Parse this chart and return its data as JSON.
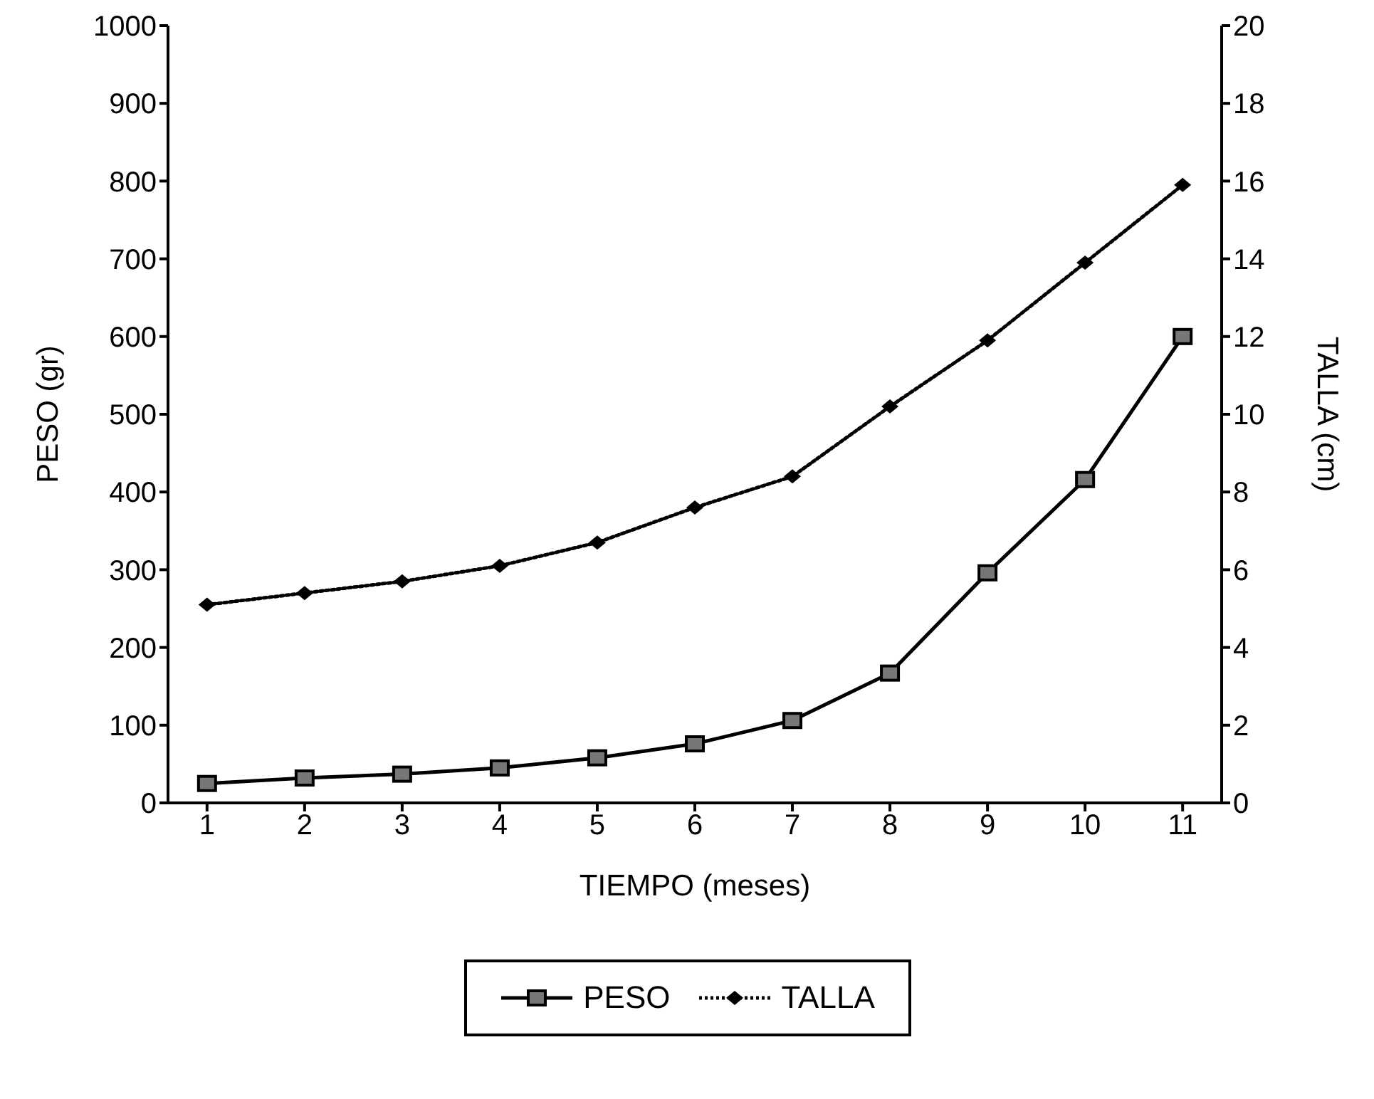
{
  "chart_data": {
    "type": "line",
    "xlabel": "TIEMPO (meses)",
    "ylabel": "PESO (gr)",
    "y2label": "TALLA (cm)",
    "x": [
      1,
      2,
      3,
      4,
      5,
      6,
      7,
      8,
      9,
      10,
      11
    ],
    "xlim": [
      0.6,
      11.4
    ],
    "xticks": [
      1,
      2,
      3,
      4,
      5,
      6,
      7,
      8,
      9,
      10,
      11
    ],
    "ylim": [
      0,
      1000
    ],
    "yticks": [
      0,
      100,
      200,
      300,
      400,
      500,
      600,
      700,
      800,
      900,
      1000
    ],
    "y2lim": [
      0,
      20
    ],
    "y2ticks": [
      0,
      2,
      4,
      6,
      8,
      10,
      12,
      14,
      16,
      18,
      20
    ],
    "legend": "bottom",
    "grid": false,
    "series": [
      {
        "name": "PESO",
        "color": "#000000",
        "marker": "square",
        "line_style": "solid",
        "values": [
          25,
          32,
          37,
          45,
          58,
          76,
          106,
          167,
          296,
          416,
          600
        ]
      },
      {
        "name": "TALLA",
        "color": "#000000",
        "marker": "diamond",
        "line_style": "dotted",
        "axis": "y2",
        "values": [
          5.1,
          5.4,
          5.7,
          6.1,
          6.7,
          7.6,
          8.4,
          10.2,
          11.9,
          13.9,
          15.9
        ]
      }
    ]
  }
}
